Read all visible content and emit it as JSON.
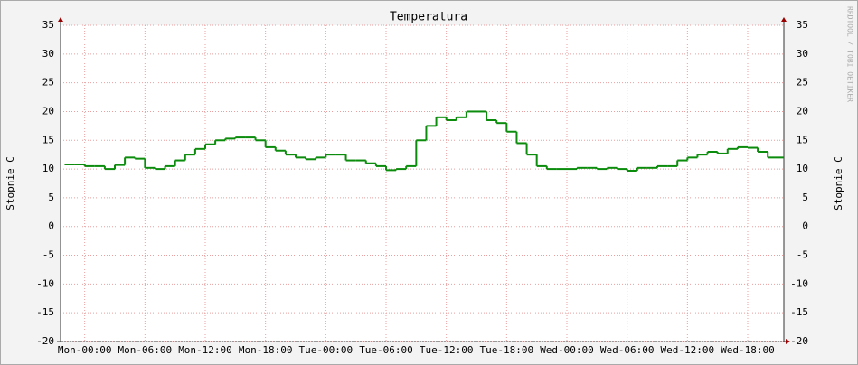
{
  "chart_data": {
    "type": "step",
    "title": "Temperatura",
    "ylabel": "Stopnie C",
    "watermark": "RRDTOOL / TOBI OETIKER",
    "x": [
      -2,
      -1,
      0,
      1,
      2,
      3,
      4,
      5,
      6,
      7,
      8,
      9,
      10,
      11,
      12,
      13,
      14,
      15,
      16,
      17,
      18,
      19,
      20,
      21,
      22,
      23,
      24,
      25,
      26,
      27,
      28,
      29,
      30,
      31,
      32,
      33,
      34,
      35,
      36,
      37,
      38,
      39,
      40,
      41,
      42,
      43,
      44,
      45,
      46,
      47,
      48,
      49,
      50,
      51,
      52,
      53,
      54,
      55,
      56,
      57,
      58,
      59,
      60,
      61,
      62,
      63,
      64,
      65,
      66,
      67,
      68,
      69
    ],
    "series": [
      {
        "name": "Temperatura",
        "color": "#0c8c0c",
        "values": [
          10.8,
          10.8,
          10.5,
          10.5,
          10,
          10.7,
          12,
          11.8,
          10.2,
          10,
          10.5,
          11.5,
          12.5,
          13.5,
          14.3,
          15,
          15.3,
          15.5,
          15.5,
          15,
          13.8,
          13.2,
          12.5,
          12,
          11.7,
          12,
          12.5,
          12.5,
          11.5,
          11.5,
          11,
          10.5,
          9.8,
          10,
          10.5,
          15,
          17.5,
          19,
          18.5,
          19,
          20,
          20,
          18.5,
          18,
          16.5,
          14.5,
          12.5,
          10.5,
          10,
          10,
          10,
          10.2,
          10.2,
          10,
          10.2,
          10,
          9.7,
          10.2,
          10.2,
          10.5,
          10.5,
          11.5,
          12,
          12.5,
          13,
          12.7,
          13.5,
          13.8,
          13.7,
          13,
          12,
          12
        ]
      }
    ],
    "xlim": [
      -2.4,
      69.6
    ],
    "xticks": [
      {
        "value": 0,
        "label": "Mon-00:00"
      },
      {
        "value": 6,
        "label": "Mon-06:00"
      },
      {
        "value": 12,
        "label": "Mon-12:00"
      },
      {
        "value": 18,
        "label": "Mon-18:00"
      },
      {
        "value": 24,
        "label": "Tue-00:00"
      },
      {
        "value": 30,
        "label": "Tue-06:00"
      },
      {
        "value": 36,
        "label": "Tue-12:00"
      },
      {
        "value": 42,
        "label": "Tue-18:00"
      },
      {
        "value": 48,
        "label": "Wed-00:00"
      },
      {
        "value": 54,
        "label": "Wed-06:00"
      },
      {
        "value": 60,
        "label": "Wed-12:00"
      },
      {
        "value": 66,
        "label": "Wed-18:00"
      }
    ],
    "ylim": [
      -20,
      35
    ],
    "yticks": [
      -20,
      -15,
      -10,
      -5,
      0,
      5,
      10,
      15,
      20,
      25,
      30,
      35
    ],
    "grid": true
  }
}
